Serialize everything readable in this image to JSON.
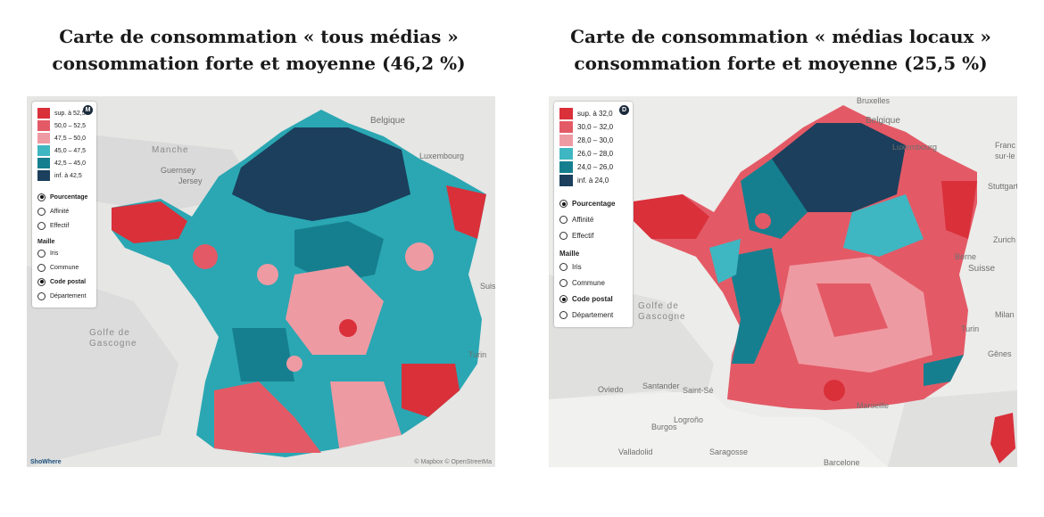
{
  "left": {
    "title_line1": "Carte de consommation « tous médias »",
    "title_line2": "consommation forte et moyenne (46,2 %)",
    "badge": "M",
    "legend": [
      {
        "label": "sup. à 52,5",
        "color": "#d9303a"
      },
      {
        "label": "50,0 – 52,5",
        "color": "#e35a66"
      },
      {
        "label": "47,5 – 50,0",
        "color": "#ee9aa3"
      },
      {
        "label": "45,0 – 47,5",
        "color": "#3fb7c2"
      },
      {
        "label": "42,5 – 45,0",
        "color": "#167f8f"
      },
      {
        "label": "inf. à 42,5",
        "color": "#1b3f5c"
      }
    ],
    "modes": [
      "Pourcentage",
      "Affinité",
      "Effectif"
    ],
    "mode_selected": 0,
    "grid_title": "Maille",
    "grids": [
      "Iris",
      "Commune",
      "Code postal",
      "Département"
    ],
    "grid_selected": 2,
    "labels": {
      "manche": "Manche",
      "belgique": "Belgique",
      "guernsey": "Guernsey",
      "jersey": "Jersey",
      "luxembourg": "Luxembourg",
      "golfe": "Golfe de",
      "gascogne": "Gascogne",
      "turin": "Turin",
      "suisse": "Suis"
    },
    "credit": "© Mapbox © OpenStreetMa",
    "brand": "ShoWhere"
  },
  "right": {
    "title_line1": "Carte de consommation « médias locaux »",
    "title_line2": "consommation forte et moyenne (25,5 %)",
    "badge": "D",
    "legend": [
      {
        "label": "sup. à 32,0",
        "color": "#d9303a"
      },
      {
        "label": "30,0 – 32,0",
        "color": "#e35a66"
      },
      {
        "label": "28,0 – 30,0",
        "color": "#ee9aa3"
      },
      {
        "label": "26,0 – 28,0",
        "color": "#3fb7c2"
      },
      {
        "label": "24,0 – 26,0",
        "color": "#167f8f"
      },
      {
        "label": "inf. à 24,0",
        "color": "#1b3f5c"
      }
    ],
    "modes": [
      "Pourcentage",
      "Affinité",
      "Effectif"
    ],
    "mode_selected": 0,
    "grid_title": "Maille",
    "grids": [
      "Iris",
      "Commune",
      "Code postal",
      "Département"
    ],
    "grid_selected": 2,
    "labels": {
      "bruxelles": "Bruxelles",
      "belgique": "Belgique",
      "luxembourg": "Luxembourg",
      "stuttgart": "Stuttgart",
      "franc": "Franc",
      "sur_le": "sur-le",
      "zurich": "Zurich",
      "berne": "Berne",
      "suisse": "Suisse",
      "milan": "Milan",
      "turin": "Turin",
      "genes": "Gênes",
      "golfe": "Golfe de",
      "gascogne": "Gascogne",
      "oviedo": "Oviedo",
      "santander": "Santander",
      "saint_se": "Saint-Sé",
      "logrono": "Logroño",
      "burgos": "Burgos",
      "valladolid": "Valladolid",
      "saragosse": "Saragosse",
      "barcelone": "Barcelone",
      "marseille": "Marseille"
    }
  }
}
